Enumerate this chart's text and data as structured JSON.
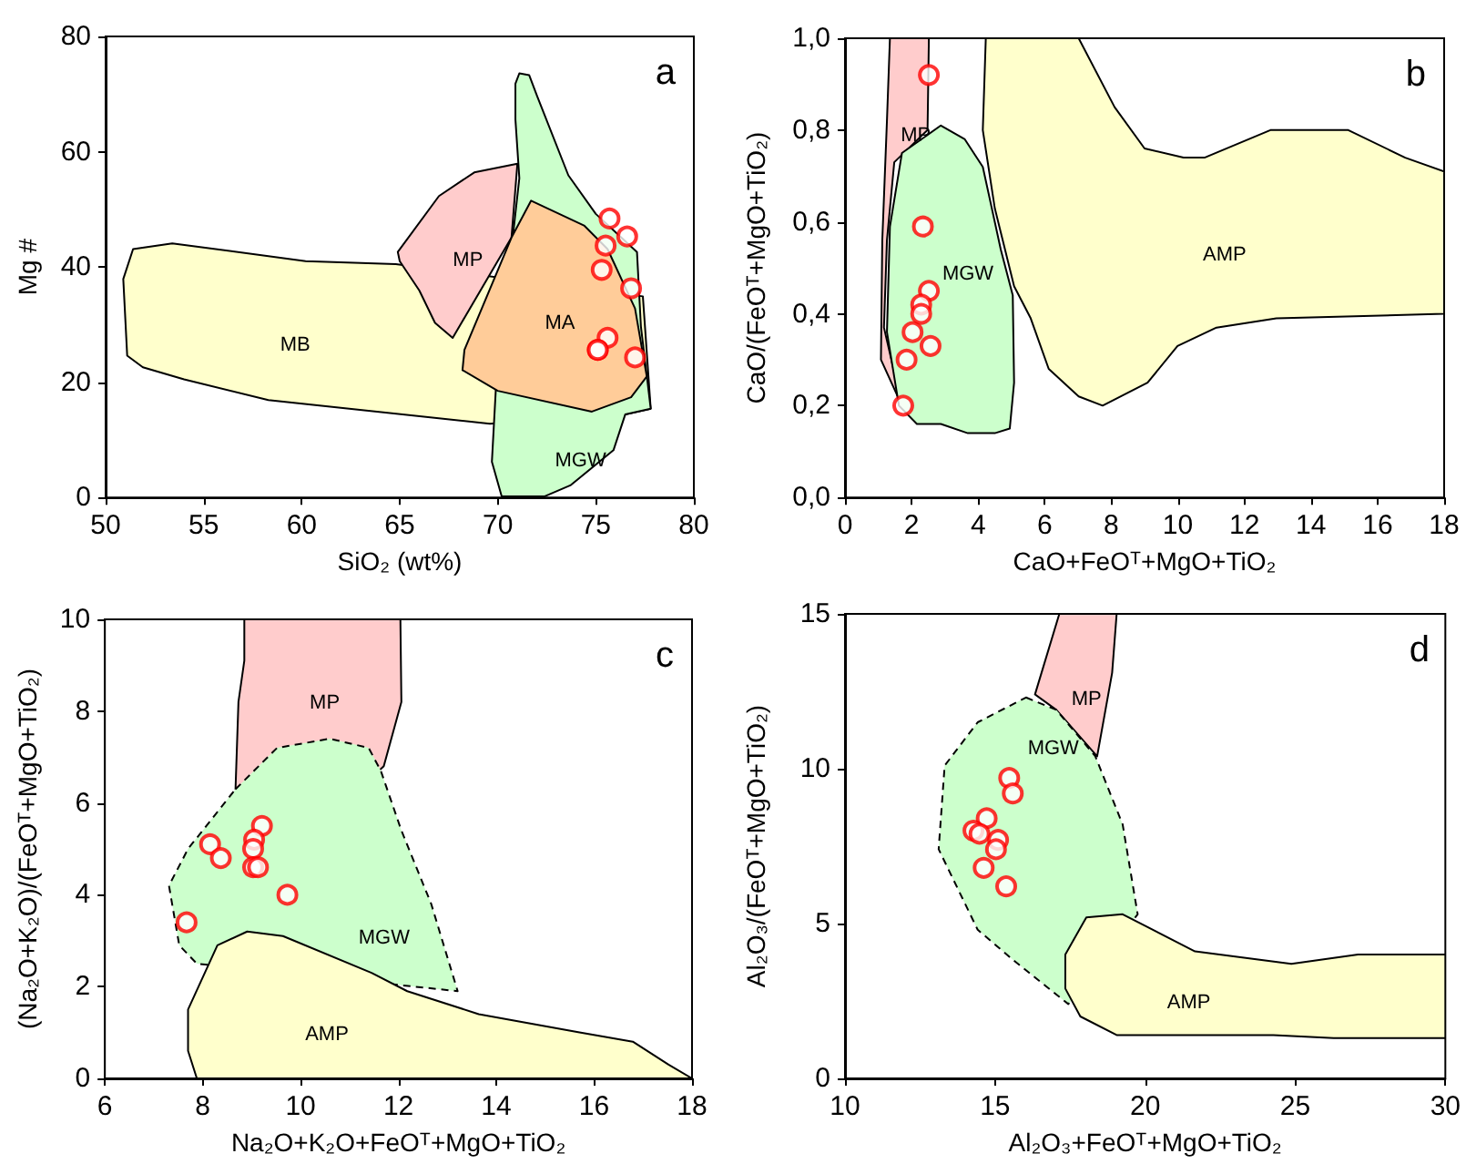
{
  "chart_data": [
    {
      "type": "scatter",
      "xlabel": "SiO₂ (wt%)",
      "ylabel": "Mg #",
      "xlim": [
        50,
        80
      ],
      "ylim": [
        0,
        80
      ],
      "xticks": [
        50,
        55,
        60,
        65,
        70,
        75,
        80
      ],
      "yticks": [
        0,
        20,
        40,
        60,
        80
      ],
      "annotations": [
        "a"
      ],
      "series": [
        {
          "type": "area",
          "name": "MB",
          "color": "#ffffcc",
          "x": [
            50.9,
            51.4,
            53.4,
            60.2,
            64.8,
            77.4,
            77.8,
            76.5,
            69.6,
            58.3,
            54.0,
            51.9,
            51.1
          ],
          "values": [
            37.9,
            43.1,
            44.1,
            41.0,
            40.5,
            34.9,
            15.4,
            14.4,
            12.8,
            16.9,
            20.5,
            22.6,
            24.6
          ]
        },
        {
          "type": "area",
          "name": "MP",
          "color": "#ffcccc",
          "x": [
            64.9,
            67.0,
            68.8,
            71.0,
            null,
            70.7,
            null,
            67.7,
            66.8,
            66.0,
            65.0
          ],
          "values": [
            42.6,
            52.3,
            56.4,
            57.9,
            null,
            45.1,
            null,
            27.7,
            30.3,
            35.9,
            41.0
          ]
        },
        {
          "type": "area",
          "name": "MGW",
          "color": "#ccffcc",
          "x": [
            70.9,
            71.1,
            71.6,
            72.0,
            73.6,
            75.0,
            77.1,
            77.3,
            77.8,
            76.5,
            75.9,
            73.7,
            72.4,
            70.2,
            69.7,
            69.9,
            71.1,
            70.9
          ],
          "values": [
            71.8,
            73.6,
            73.3,
            69.7,
            55.9,
            49.2,
            42.6,
            29.7,
            15.4,
            14.4,
            8.2,
            2.1,
            0.2,
            0.2,
            6.2,
            18.7,
            55.4,
            65.6
          ]
        },
        {
          "type": "area",
          "name": "MA",
          "color": "#ffcc99",
          "x": [
            71.7,
            74.4,
            75.6,
            77.0,
            77.6,
            76.8,
            74.8,
            70.0,
            68.2,
            68.3,
            70.7
          ],
          "values": [
            51.5,
            47.2,
            43.1,
            32.8,
            21.0,
            17.4,
            14.9,
            18.5,
            22.1,
            25.6,
            45.1
          ]
        },
        {
          "color": "#ff0000",
          "marker": "circle",
          "x": [
            75.7,
            76.6,
            75.5,
            75.3,
            76.8,
            75.6,
            75.1,
            75.1,
            77.0
          ],
          "values": [
            48.4,
            45.3,
            43.7,
            39.5,
            36.3,
            27.7,
            25.6,
            25.6,
            24.3
          ]
        }
      ]
    },
    {
      "type": "scatter",
      "xlabel": "CaO+FeOᵀ+MgO+TiO₂",
      "ylabel": "CaO/(FeOᵀ+MgO+TiO₂)",
      "xlim": [
        0,
        18
      ],
      "ylim": [
        0,
        1
      ],
      "xticks": [
        0,
        2,
        4,
        6,
        8,
        10,
        12,
        14,
        16,
        18
      ],
      "yticks": [
        {
          "value": 0,
          "label": "0,0"
        },
        {
          "value": 0.2,
          "label": "0,2"
        },
        {
          "value": 0.4,
          "label": "0,4"
        },
        {
          "value": 0.6,
          "label": "0,6"
        },
        {
          "value": 0.8,
          "label": "0,8"
        },
        {
          "value": 1,
          "label": "1,0"
        }
      ],
      "annotations": [
        "b"
      ],
      "series": [
        {
          "type": "area",
          "name": "MP",
          "color": "#ffcccc",
          "x": [
            1.35,
            2.52,
            2.48,
            1.48,
            1.26,
            1.17,
            1.71,
            1.08,
            1.12,
            1.26
          ],
          "values": [
            1.0,
            1.0,
            0.8,
            0.73,
            0.56,
            0.37,
            0.2,
            0.3,
            0.56,
            0.82
          ]
        },
        {
          "type": "area",
          "name": "MGW",
          "color": "#ccffcc",
          "x": [
            1.35,
            1.71,
            2.88,
            3.6,
            4.14,
            4.68,
            5.04,
            5.08,
            4.95,
            4.5,
            3.69,
            2.88,
            2.16,
            1.62,
            1.26
          ],
          "values": [
            0.59,
            0.75,
            0.81,
            0.78,
            0.72,
            0.54,
            0.44,
            0.25,
            0.15,
            0.14,
            0.14,
            0.16,
            0.16,
            0.2,
            0.36
          ]
        },
        {
          "type": "area",
          "name": "AMP",
          "color": "#ffffcc",
          "x": [
            4.23,
            7.02,
            8.1,
            9.0,
            10.17,
            10.8,
            12.78,
            15.12,
            16.83,
            18,
            18,
            12.96,
            11.16,
            9.99,
            9.09,
            7.74,
            7.02,
            6.12,
            5.58,
            5.08,
            4.5,
            4.14
          ],
          "values": [
            1.0,
            1.0,
            0.85,
            0.76,
            0.74,
            0.74,
            0.8,
            0.8,
            0.74,
            0.71,
            0.4,
            0.39,
            0.37,
            0.33,
            0.25,
            0.2,
            0.22,
            0.28,
            0.39,
            0.46,
            0.63,
            0.8
          ]
        },
        {
          "color": "#ff0000",
          "marker": "circle",
          "x": [
            2.52,
            2.34,
            2.52,
            2.29,
            2.29,
            2.03,
            2.57,
            1.85,
            1.75
          ],
          "values": [
            0.92,
            0.59,
            0.45,
            0.42,
            0.4,
            0.36,
            0.33,
            0.3,
            0.2
          ]
        }
      ]
    },
    {
      "type": "scatter",
      "xlabel": "Na₂O+K₂O+FeOᵀ+MgO+TiO₂",
      "ylabel": "(Na₂O+K₂O)/(FeOᵀ+MgO+TiO₂)",
      "xlim": [
        6,
        18
      ],
      "ylim": [
        0,
        10
      ],
      "xticks": [
        6,
        8,
        10,
        12,
        14,
        16,
        18
      ],
      "yticks": [
        0,
        2,
        4,
        6,
        8,
        10
      ],
      "annotations": [
        "c"
      ],
      "series": [
        {
          "type": "area",
          "name": "MP",
          "color": "#ffcccc",
          "x": [
            8.85,
            12.04,
            12.06,
            11.7,
            11.6,
            8.67,
            8.73,
            8.85
          ],
          "values": [
            10,
            10,
            8.2,
            6.8,
            6.7,
            6.3,
            8.2,
            9.1
          ]
        },
        {
          "type": "area",
          "name": "MGW",
          "color": "#ccffcc",
          "line_style": "dashed",
          "x": [
            8.67,
            9.52,
            10.6,
            11.39,
            11.64,
            12.06,
            12.67,
            13.21,
            7.88,
            7.52,
            7.31,
            7.7
          ],
          "values": [
            6.3,
            7.2,
            7.4,
            7.2,
            6.7,
            5.4,
            3.8,
            1.9,
            2.5,
            2.9,
            4.2,
            5.0
          ]
        },
        {
          "type": "area",
          "name": "AMP",
          "color": "#ffffcc",
          "x": [
            7.7,
            8.3,
            8.91,
            9.64,
            11.45,
            12.18,
            13.64,
            15.7,
            16.79,
            17.52,
            18,
            7.88,
            7.7
          ],
          "values": [
            1.5,
            2.9,
            3.2,
            3.1,
            2.3,
            1.9,
            1.4,
            1.0,
            0.8,
            0.3,
            0,
            0,
            0.6
          ]
        },
        {
          "color": "#ff0000",
          "marker": "circle",
          "x": [
            7.67,
            8.15,
            8.37,
            9.21,
            9.05,
            9.03,
            9.03,
            9.13,
            9.73
          ],
          "values": [
            3.4,
            5.1,
            4.8,
            5.5,
            5.2,
            5.0,
            4.6,
            4.6,
            4.0
          ]
        }
      ]
    },
    {
      "type": "scatter",
      "xlabel": "Al₂O₃+FeOᵀ+MgO+TiO₂",
      "ylabel": "Al₂O₃/(FeOᵀ+MgO+TiO₂)",
      "xlim": [
        10,
        30
      ],
      "ylim": [
        0,
        15
      ],
      "xticks": [
        10,
        15,
        20,
        25,
        30
      ],
      "yticks": [
        0,
        5,
        10,
        15
      ],
      "annotations": [
        "d"
      ],
      "series": [
        {
          "type": "area",
          "name": "MP",
          "color": "#ffcccc",
          "x": [
            16.33,
            17.14,
            19.05,
            18.9,
            18.4,
            17.04
          ],
          "values": [
            12.4,
            15,
            15,
            13.1,
            10.4,
            11.9
          ]
        },
        {
          "type": "area",
          "name": "MGW",
          "color": "#ccffcc",
          "line_style": "dashed",
          "x": [
            16.03,
            17.04,
            18.34,
            19.25,
            19.75,
            17.44,
            15.63,
            14.42,
            13.12,
            13.32,
            14.42
          ],
          "values": [
            12.3,
            11.9,
            10.4,
            8.2,
            5.3,
            2.4,
            3.8,
            4.8,
            7.4,
            10.1,
            11.5
          ]
        },
        {
          "type": "area",
          "name": "AMP",
          "color": "#ffffcc",
          "x": [
            17.34,
            18.04,
            19.25,
            21.66,
            24.87,
            27.09,
            30,
            30,
            26.28,
            24.27,
            19.05,
            17.84,
            17.34
          ],
          "values": [
            4.0,
            5.2,
            5.3,
            4.1,
            3.7,
            4.0,
            4.0,
            1.3,
            1.3,
            1.4,
            1.4,
            2.0,
            2.9
          ]
        },
        {
          "color": "#ff0000",
          "marker": "circle",
          "x": [
            15.47,
            15.59,
            14.72,
            14.28,
            14.48,
            15.1,
            15.03,
            14.62,
            15.37
          ],
          "values": [
            9.7,
            9.2,
            8.4,
            8.0,
            7.9,
            7.7,
            7.4,
            6.8,
            6.2
          ]
        }
      ]
    }
  ]
}
